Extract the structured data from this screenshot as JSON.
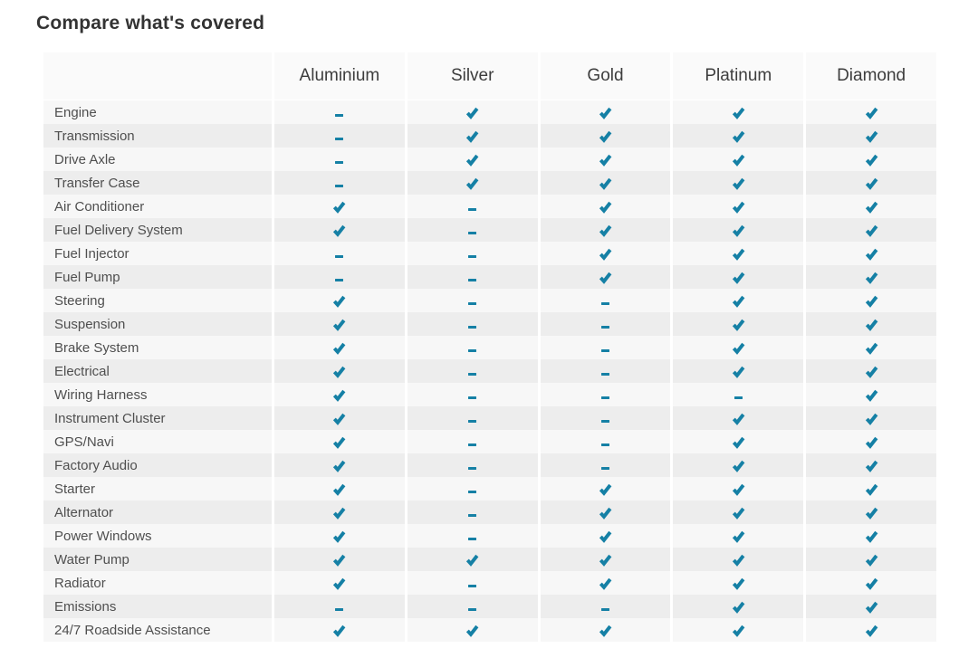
{
  "page": {
    "title": "Compare what's covered"
  },
  "colors": {
    "accent_teal": "#1580a5",
    "row_light": "#f7f7f7",
    "row_dark": "#ededed",
    "header_bg": "#fafafa",
    "title_text": "#333333",
    "label_text": "#4f4f4f",
    "header_text": "#3d3d3d",
    "separator": "#ffffff"
  },
  "table": {
    "plans": [
      "Aluminium",
      "Silver",
      "Gold",
      "Platinum",
      "Diamond"
    ],
    "legend": {
      "covered_icon": "check-icon",
      "not_covered_icon": "dash-icon"
    },
    "rows": [
      {
        "label": "Engine",
        "coverage": [
          false,
          true,
          true,
          true,
          true
        ]
      },
      {
        "label": "Transmission",
        "coverage": [
          false,
          true,
          true,
          true,
          true
        ]
      },
      {
        "label": "Drive Axle",
        "coverage": [
          false,
          true,
          true,
          true,
          true
        ]
      },
      {
        "label": "Transfer Case",
        "coverage": [
          false,
          true,
          true,
          true,
          true
        ]
      },
      {
        "label": "Air Conditioner",
        "coverage": [
          true,
          false,
          true,
          true,
          true
        ]
      },
      {
        "label": "Fuel Delivery System",
        "coverage": [
          true,
          false,
          true,
          true,
          true
        ]
      },
      {
        "label": "Fuel Injector",
        "coverage": [
          false,
          false,
          true,
          true,
          true
        ]
      },
      {
        "label": "Fuel Pump",
        "coverage": [
          false,
          false,
          true,
          true,
          true
        ]
      },
      {
        "label": "Steering",
        "coverage": [
          true,
          false,
          false,
          true,
          true
        ]
      },
      {
        "label": "Suspension",
        "coverage": [
          true,
          false,
          false,
          true,
          true
        ]
      },
      {
        "label": "Brake System",
        "coverage": [
          true,
          false,
          false,
          true,
          true
        ]
      },
      {
        "label": "Electrical",
        "coverage": [
          true,
          false,
          false,
          true,
          true
        ]
      },
      {
        "label": "Wiring Harness",
        "coverage": [
          true,
          false,
          false,
          false,
          true
        ]
      },
      {
        "label": "Instrument Cluster",
        "coverage": [
          true,
          false,
          false,
          true,
          true
        ]
      },
      {
        "label": "GPS/Navi",
        "coverage": [
          true,
          false,
          false,
          true,
          true
        ]
      },
      {
        "label": "Factory Audio",
        "coverage": [
          true,
          false,
          false,
          true,
          true
        ]
      },
      {
        "label": "Starter",
        "coverage": [
          true,
          false,
          true,
          true,
          true
        ]
      },
      {
        "label": "Alternator",
        "coverage": [
          true,
          false,
          true,
          true,
          true
        ]
      },
      {
        "label": "Power Windows",
        "coverage": [
          true,
          false,
          true,
          true,
          true
        ]
      },
      {
        "label": "Water Pump",
        "coverage": [
          true,
          true,
          true,
          true,
          true
        ]
      },
      {
        "label": "Radiator",
        "coverage": [
          true,
          false,
          true,
          true,
          true
        ]
      },
      {
        "label": "Emissions",
        "coverage": [
          false,
          false,
          false,
          true,
          true
        ]
      },
      {
        "label": "24/7 Roadside Assistance",
        "coverage": [
          true,
          true,
          true,
          true,
          true
        ]
      }
    ]
  }
}
